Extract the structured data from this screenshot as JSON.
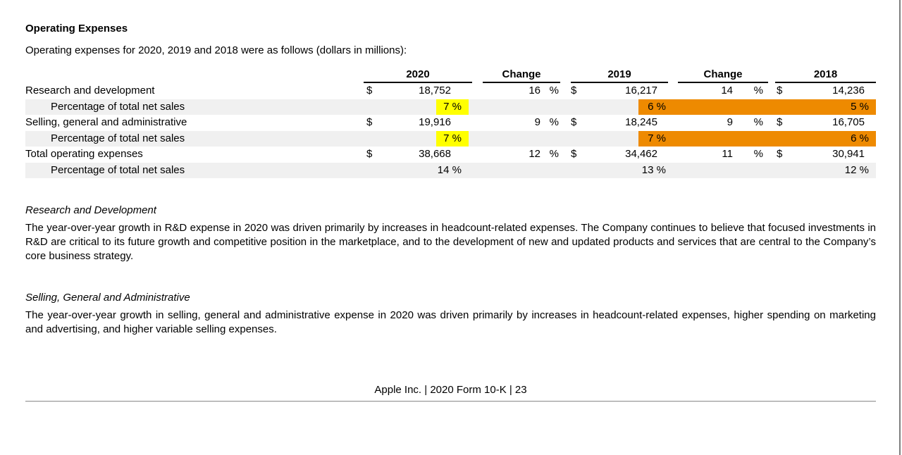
{
  "page": {
    "title": "Operating Expenses",
    "intro": "Operating expenses for 2020, 2019 and 2018 were as follows (dollars in millions):",
    "footer": "Apple Inc. | 2020 Form 10-K | 23"
  },
  "colors": {
    "highlight_yellow": "#ffff00",
    "highlight_orange": "#ee8a00",
    "row_shade_gray": "#f0f0f0"
  },
  "table": {
    "headers": {
      "y2020": "2020",
      "change1": "Change",
      "y2019": "2019",
      "change2": "Change",
      "y2018": "2018"
    },
    "sym": {
      "dollar": "$",
      "percent": "%"
    },
    "rows": [
      {
        "label": "Research and development",
        "v2020": "18,752",
        "chg1": "16",
        "v2019": "16,217",
        "chg2": "14",
        "v2018": "14,236"
      },
      {
        "label": "Percentage of total net sales",
        "p2020": "7 %",
        "p2019": "6 %",
        "p2018": "5 %"
      },
      {
        "label": "Selling, general and administrative",
        "v2020": "19,916",
        "chg1": "9",
        "v2019": "18,245",
        "chg2": "9",
        "v2018": "16,705"
      },
      {
        "label": "Percentage of total net sales",
        "p2020": "7 %",
        "p2019": "7 %",
        "p2018": "6 %"
      },
      {
        "label": "Total operating expenses",
        "v2020": "38,668",
        "chg1": "12",
        "v2019": "34,462",
        "chg2": "11",
        "v2018": "30,941"
      },
      {
        "label": "Percentage of total net sales",
        "p2020": "14 %",
        "p2019": "13 %",
        "p2018": "12 %"
      }
    ]
  },
  "sections": [
    {
      "heading": "Research and Development",
      "body": "The year-over-year growth in R&D expense in 2020 was driven primarily by increases in headcount-related expenses. The Company continues to believe that focused investments in R&D are critical to its future growth and competitive position in the marketplace, and to the development of new and updated products and services that are central to the Company’s core business strategy."
    },
    {
      "heading": "Selling, General and Administrative",
      "body": "The year-over-year growth in selling, general and administrative expense in 2020 was driven primarily by increases in headcount-related expenses, higher spending on marketing and advertising, and higher variable selling expenses."
    }
  ]
}
